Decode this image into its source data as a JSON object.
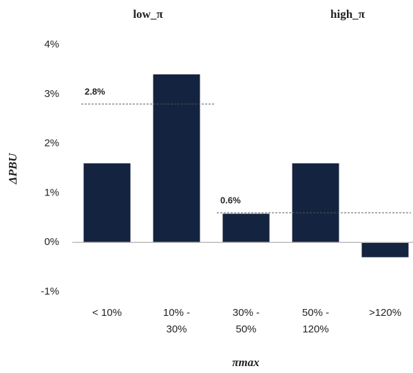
{
  "chart_data": {
    "type": "bar",
    "categories": [
      "< 10%",
      "10% - 30%",
      "30% - 50%",
      "50% - 120%",
      ">120%"
    ],
    "values": [
      1.6,
      3.4,
      0.58,
      1.6,
      -0.3
    ],
    "color": "#14233f",
    "ylim": [
      -1,
      4
    ],
    "yticks": [
      {
        "value": -1,
        "label": "-1%"
      },
      {
        "value": 0,
        "label": "0%"
      },
      {
        "value": 1,
        "label": "1%"
      },
      {
        "value": 2,
        "label": "2%"
      },
      {
        "value": 3,
        "label": "3%"
      },
      {
        "value": 4,
        "label": "4%"
      }
    ],
    "y_label": "ΔPBU",
    "x_label": "πmax",
    "group_labels": [
      "low_π",
      "high_π"
    ],
    "reference_lines": [
      {
        "value": 2.8,
        "label": "2.8%"
      },
      {
        "value": 0.6,
        "label": "0.6%"
      }
    ]
  }
}
